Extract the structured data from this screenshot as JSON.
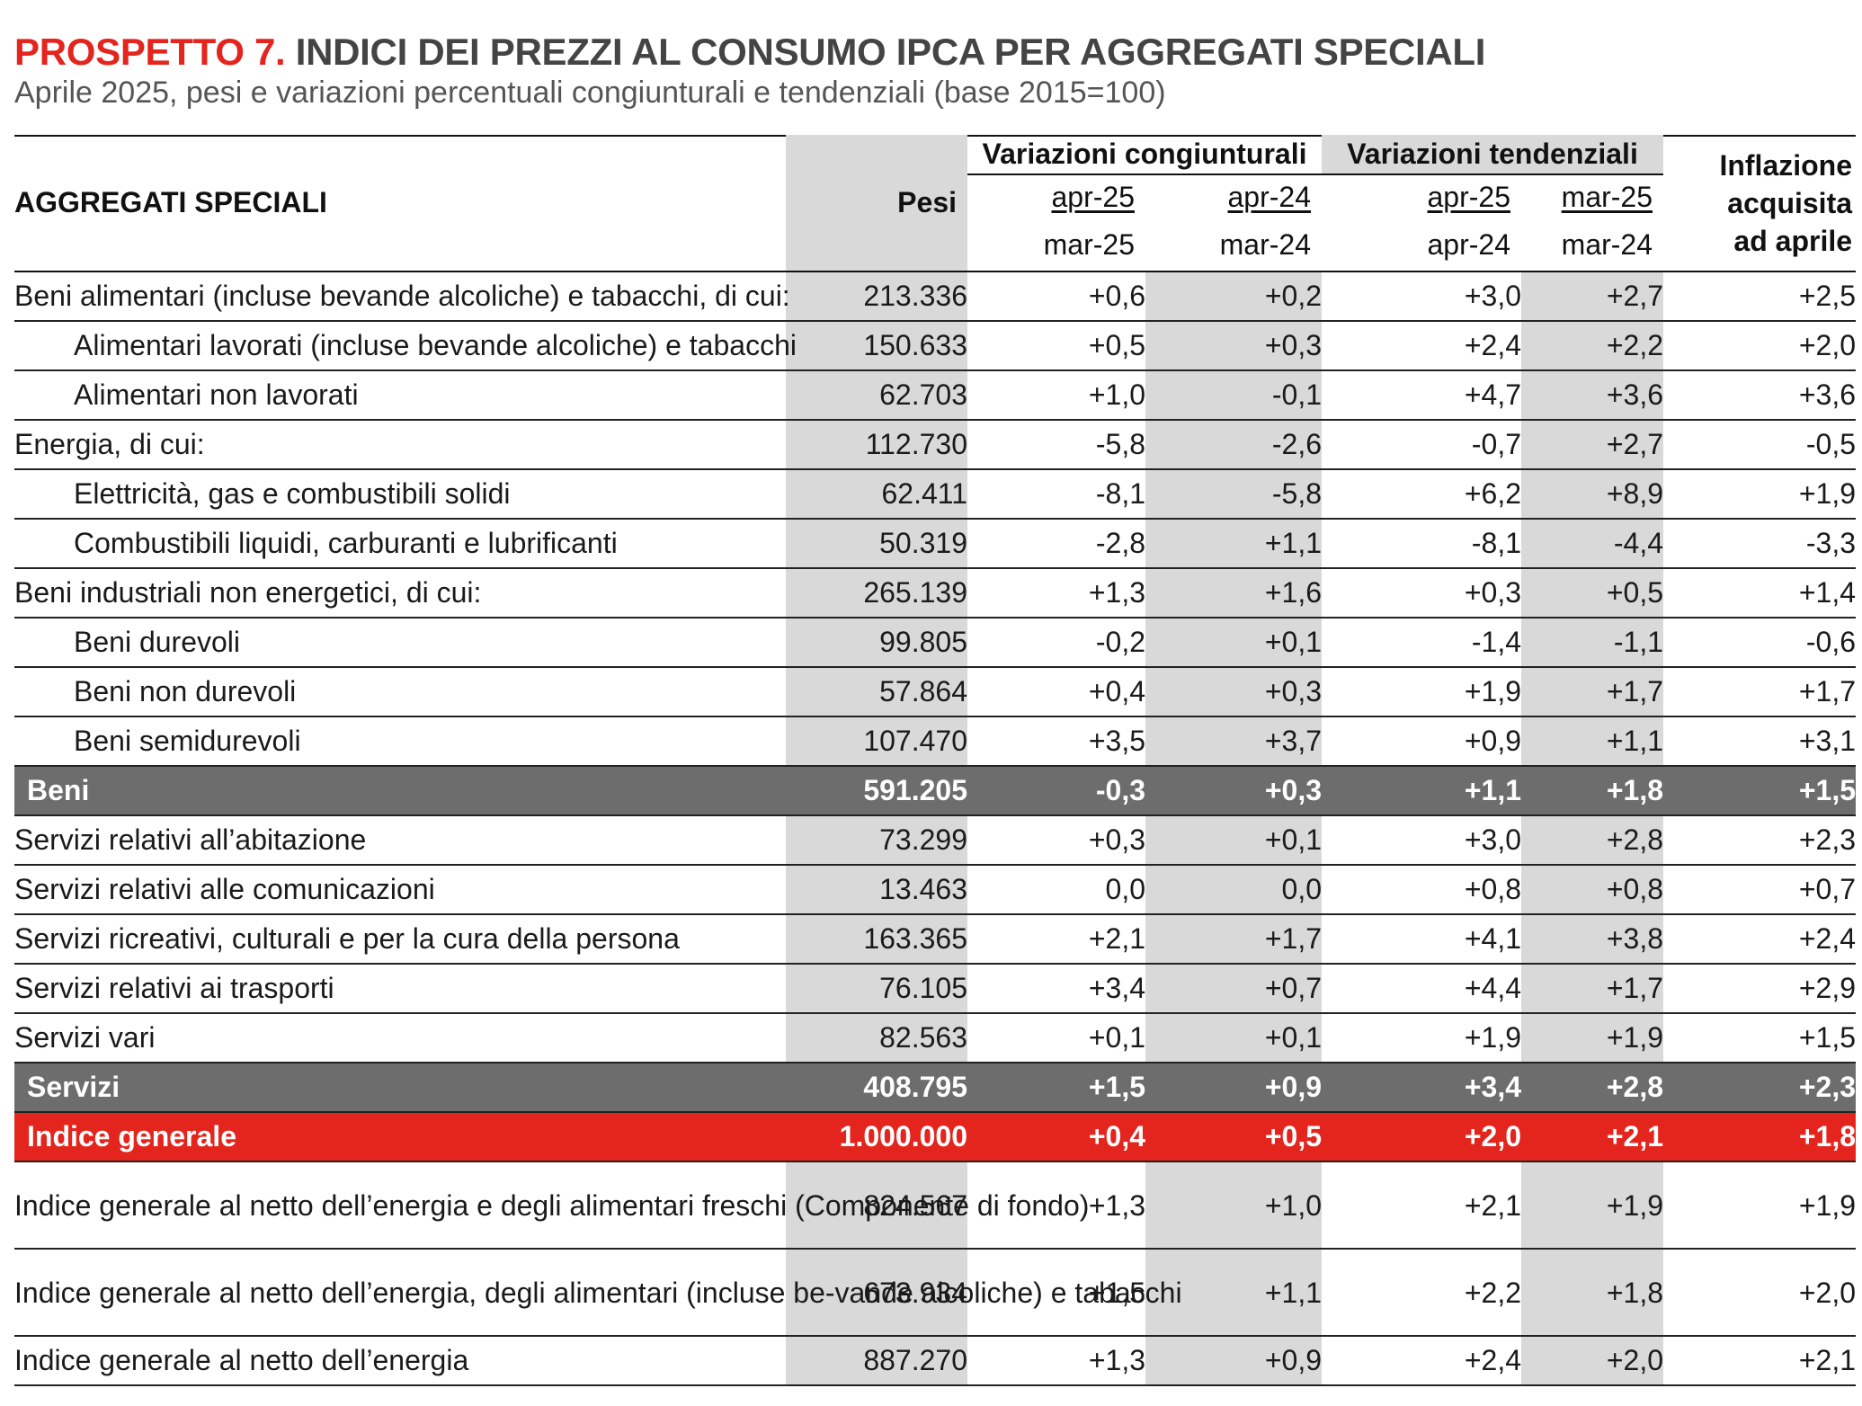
{
  "title": {
    "lead": "PROSPETTO 7.",
    "rest": " INDICI DEI PREZZI AL CONSUMO IPCA PER AGGREGATI SPECIALI"
  },
  "subtitle": "Aprile 2025, pesi e variazioni percentuali congiunturali e tendenziali (base 2015=100)",
  "header": {
    "aggregati": "AGGREGATI SPECIALI",
    "pesi": "Pesi",
    "group_cong": "Variazioni congiunturali",
    "group_tend": "Variazioni tendenziali",
    "inflazione": [
      "Inflazione",
      "acquisita",
      "ad aprile"
    ],
    "cols_top": [
      "apr-25",
      "apr-24",
      "apr-25",
      "mar-25"
    ],
    "cols_bottom": [
      "mar-25",
      "mar-24",
      "apr-24",
      "mar-24"
    ]
  },
  "rows": [
    {
      "label": "Beni alimentari (incluse bevande alcoliche) e tabacchi, di cui:",
      "pesi": "213.336",
      "v": [
        "+0,6",
        "+0,2",
        "+3,0",
        "+2,7",
        "+2,5"
      ]
    },
    {
      "label": "Alimentari lavorati (incluse bevande alcoliche) e tabacchi",
      "pesi": "150.633",
      "v": [
        "+0,5",
        "+0,3",
        "+2,4",
        "+2,2",
        "+2,0"
      ]
    },
    {
      "label": "Alimentari non lavorati",
      "pesi": "62.703",
      "v": [
        "+1,0",
        "-0,1",
        "+4,7",
        "+3,6",
        "+3,6"
      ]
    },
    {
      "label": "Energia, di cui:",
      "pesi": "112.730",
      "v": [
        "-5,8",
        "-2,6",
        "-0,7",
        "+2,7",
        "-0,5"
      ]
    },
    {
      "label": "Elettricità, gas e combustibili solidi",
      "pesi": "62.411",
      "v": [
        "-8,1",
        "-5,8",
        "+6,2",
        "+8,9",
        "+1,9"
      ]
    },
    {
      "label": "Combustibili liquidi, carburanti e lubrificanti",
      "pesi": "50.319",
      "v": [
        "-2,8",
        "+1,1",
        "-8,1",
        "-4,4",
        "-3,3"
      ]
    },
    {
      "label": "Beni industriali non energetici, di cui:",
      "pesi": "265.139",
      "v": [
        "+1,3",
        "+1,6",
        "+0,3",
        "+0,5",
        "+1,4"
      ]
    },
    {
      "label": "Beni durevoli",
      "pesi": "99.805",
      "v": [
        "-0,2",
        "+0,1",
        "-1,4",
        "-1,1",
        "-0,6"
      ]
    },
    {
      "label": "Beni non durevoli",
      "pesi": "57.864",
      "v": [
        "+0,4",
        "+0,3",
        "+1,9",
        "+1,7",
        "+1,7"
      ]
    },
    {
      "label": "Beni semidurevoli",
      "pesi": "107.470",
      "v": [
        "+3,5",
        "+3,7",
        "+0,9",
        "+1,1",
        "+3,1"
      ]
    },
    {
      "label": "Beni",
      "pesi": "591.205",
      "v": [
        "-0,3",
        "+0,3",
        "+1,1",
        "+1,8",
        "+1,5"
      ]
    },
    {
      "label": "Servizi relativi all’abitazione",
      "pesi": "73.299",
      "v": [
        "+0,3",
        "+0,1",
        "+3,0",
        "+2,8",
        "+2,3"
      ]
    },
    {
      "label": "Servizi relativi alle comunicazioni",
      "pesi": "13.463",
      "v": [
        "0,0",
        "0,0",
        "+0,8",
        "+0,8",
        "+0,7"
      ]
    },
    {
      "label": "Servizi ricreativi, culturali e per la cura della persona",
      "pesi": "163.365",
      "v": [
        "+2,1",
        "+1,7",
        "+4,1",
        "+3,8",
        "+2,4"
      ]
    },
    {
      "label": "Servizi relativi ai trasporti",
      "pesi": "76.105",
      "v": [
        "+3,4",
        "+0,7",
        "+4,4",
        "+1,7",
        "+2,9"
      ]
    },
    {
      "label": "Servizi vari",
      "pesi": "82.563",
      "v": [
        "+0,1",
        "+0,1",
        "+1,9",
        "+1,9",
        "+1,5"
      ]
    },
    {
      "label": "Servizi",
      "pesi": "408.795",
      "v": [
        "+1,5",
        "+0,9",
        "+3,4",
        "+2,8",
        "+2,3"
      ]
    },
    {
      "label": "Indice generale",
      "pesi": "1.000.000",
      "v": [
        "+0,4",
        "+0,5",
        "+2,0",
        "+2,1",
        "+1,8"
      ]
    },
    {
      "label": "Indice generale al netto dell’energia e degli alimentari freschi (Componente di fondo)",
      "pesi": "824.567",
      "v": [
        "+1,3",
        "+1,0",
        "+2,1",
        "+1,9",
        "+1,9"
      ]
    },
    {
      "label": "Indice generale al netto dell’energia, degli alimentari (incluse be-vande alcoliche) e tabacchi",
      "pesi": "673.934",
      "v": [
        "+1,5",
        "+1,1",
        "+2,2",
        "+1,8",
        "+2,0"
      ]
    },
    {
      "label": "Indice generale al netto dell’energia",
      "pesi": "887.270",
      "v": [
        "+1,3",
        "+0,9",
        "+2,4",
        "+2,0",
        "+2,1"
      ]
    }
  ],
  "colors": {
    "accent_red": "#e3251e",
    "dark_gray": "#6d6d6d",
    "light_gray": "#d9d9d9"
  }
}
